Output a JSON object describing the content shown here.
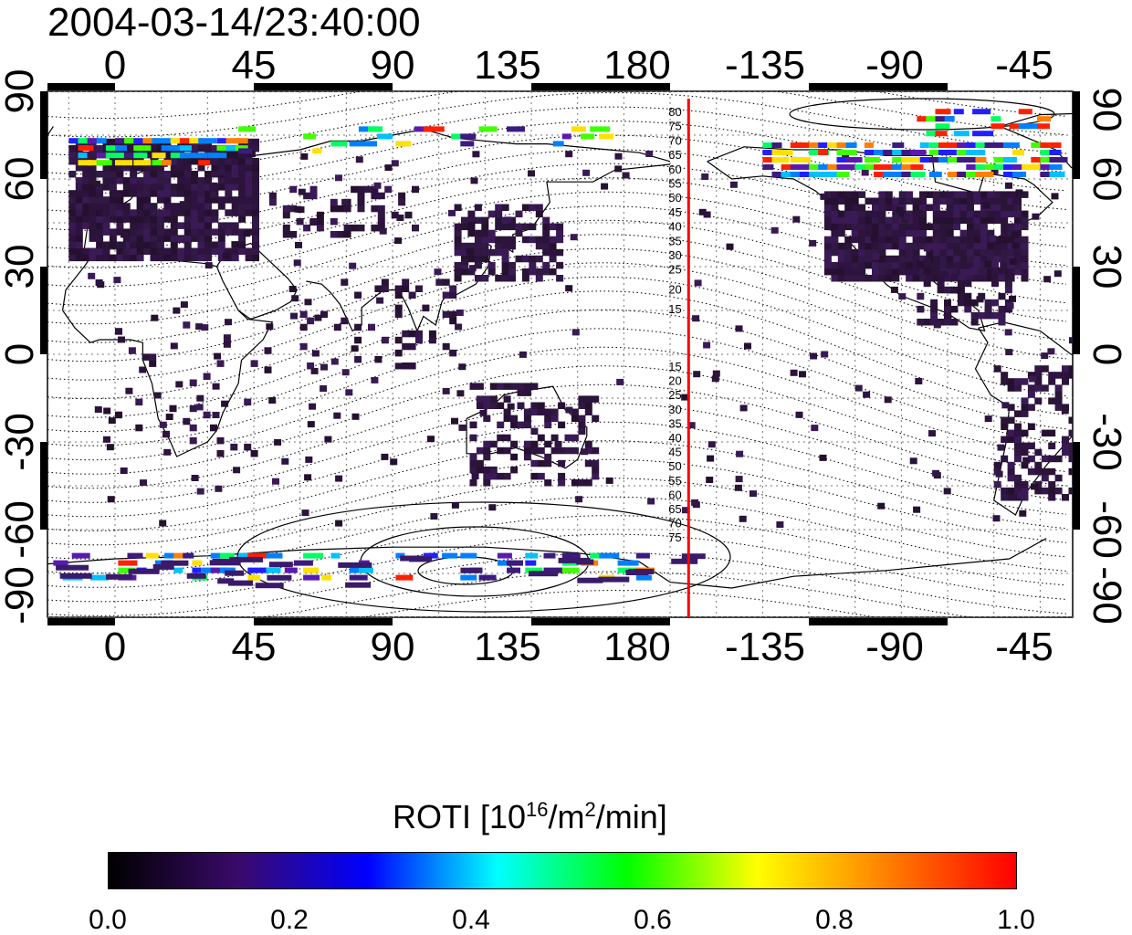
{
  "title": "2004-03-14/23:40:00",
  "x_ticks": [
    "0",
    "45",
    "90",
    "135",
    "180",
    "-135",
    "-90",
    "-45"
  ],
  "y_ticks": [
    "90",
    "60",
    "30",
    "0",
    "-30",
    "-60",
    "-90"
  ],
  "magnetic_lat_labels_north": [
    "80",
    "75",
    "70",
    "65",
    "60",
    "55",
    "50",
    "45",
    "40",
    "35",
    "30",
    "25",
    "20",
    "15"
  ],
  "magnetic_lat_labels_south": [
    "15",
    "20",
    "25",
    "30",
    "35",
    "40",
    "45",
    "50",
    "55",
    "60",
    "65",
    "70",
    "75"
  ],
  "noon_meridian_lon": 186,
  "colorbar": {
    "title_prefix": "ROTI  [10",
    "title_exp1": "16",
    "title_mid": "/m",
    "title_exp2": "2",
    "title_suffix": "/min]",
    "ticks": [
      "0.0",
      "0.2",
      "0.4",
      "0.6",
      "0.8",
      "1.0"
    ],
    "gradient_stops": [
      "#000000",
      "#3a0a6a",
      "#0000ff",
      "#00ffff",
      "#00ff00",
      "#ffff00",
      "#ff8000",
      "#ff0000"
    ]
  },
  "colors": {
    "meridian_line": "#ff0000",
    "low_roti": "#2a1438",
    "mid_roti": "#3d1a80"
  }
}
